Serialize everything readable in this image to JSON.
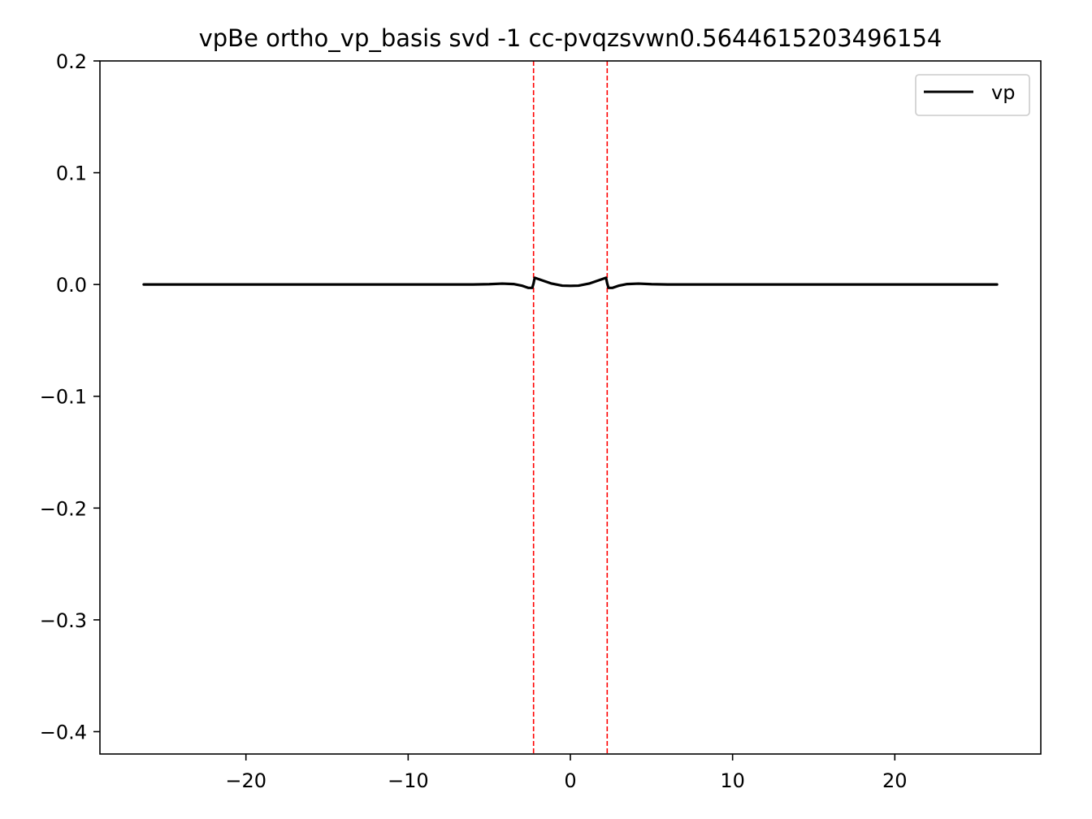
{
  "chart_data": {
    "type": "line",
    "title": "vpBe ortho_vp_basis svd -1 cc-pvqzsvwn0.5644615203496154",
    "xlabel": "",
    "ylabel": "",
    "xlim": [
      -29,
      29
    ],
    "ylim": [
      -0.42,
      0.2
    ],
    "xticks": [
      -20,
      -10,
      0,
      10,
      20
    ],
    "xtick_labels": [
      "−20",
      "−10",
      "0",
      "10",
      "20"
    ],
    "yticks": [
      0.2,
      0.1,
      0.0,
      -0.1,
      -0.2,
      -0.3,
      -0.4
    ],
    "ytick_labels": [
      "0.2",
      "0.1",
      "0.0",
      "−0.1",
      "−0.2",
      "−0.3",
      "−0.4"
    ],
    "grid": false,
    "legend_position": "top-right",
    "series": [
      {
        "name": "vp",
        "color": "#000000",
        "x": [
          -26.3,
          -10,
          -6,
          -5,
          -4.2,
          -3.5,
          -3,
          -2.6,
          -2.35,
          -2.27,
          -2.2,
          -1.8,
          -1.2,
          -0.5,
          0,
          0.5,
          1.2,
          1.8,
          2.2,
          2.27,
          2.35,
          2.6,
          3,
          3.5,
          4.2,
          5,
          6,
          10,
          26.3
        ],
        "y": [
          0.0,
          0.0,
          0.0,
          0.0003,
          0.0008,
          0.0004,
          -0.001,
          -0.003,
          -0.003,
          0.001,
          0.006,
          0.004,
          0.001,
          -0.001,
          -0.0012,
          -0.001,
          0.001,
          0.004,
          0.006,
          0.001,
          -0.003,
          -0.003,
          -0.001,
          0.0004,
          0.0008,
          0.0003,
          0.0,
          0.0,
          0.0
        ]
      }
    ],
    "vlines": [
      {
        "x": -2.27,
        "color": "#ff0000",
        "style": "dashed"
      },
      {
        "x": 2.27,
        "color": "#ff0000",
        "style": "dashed"
      }
    ]
  }
}
